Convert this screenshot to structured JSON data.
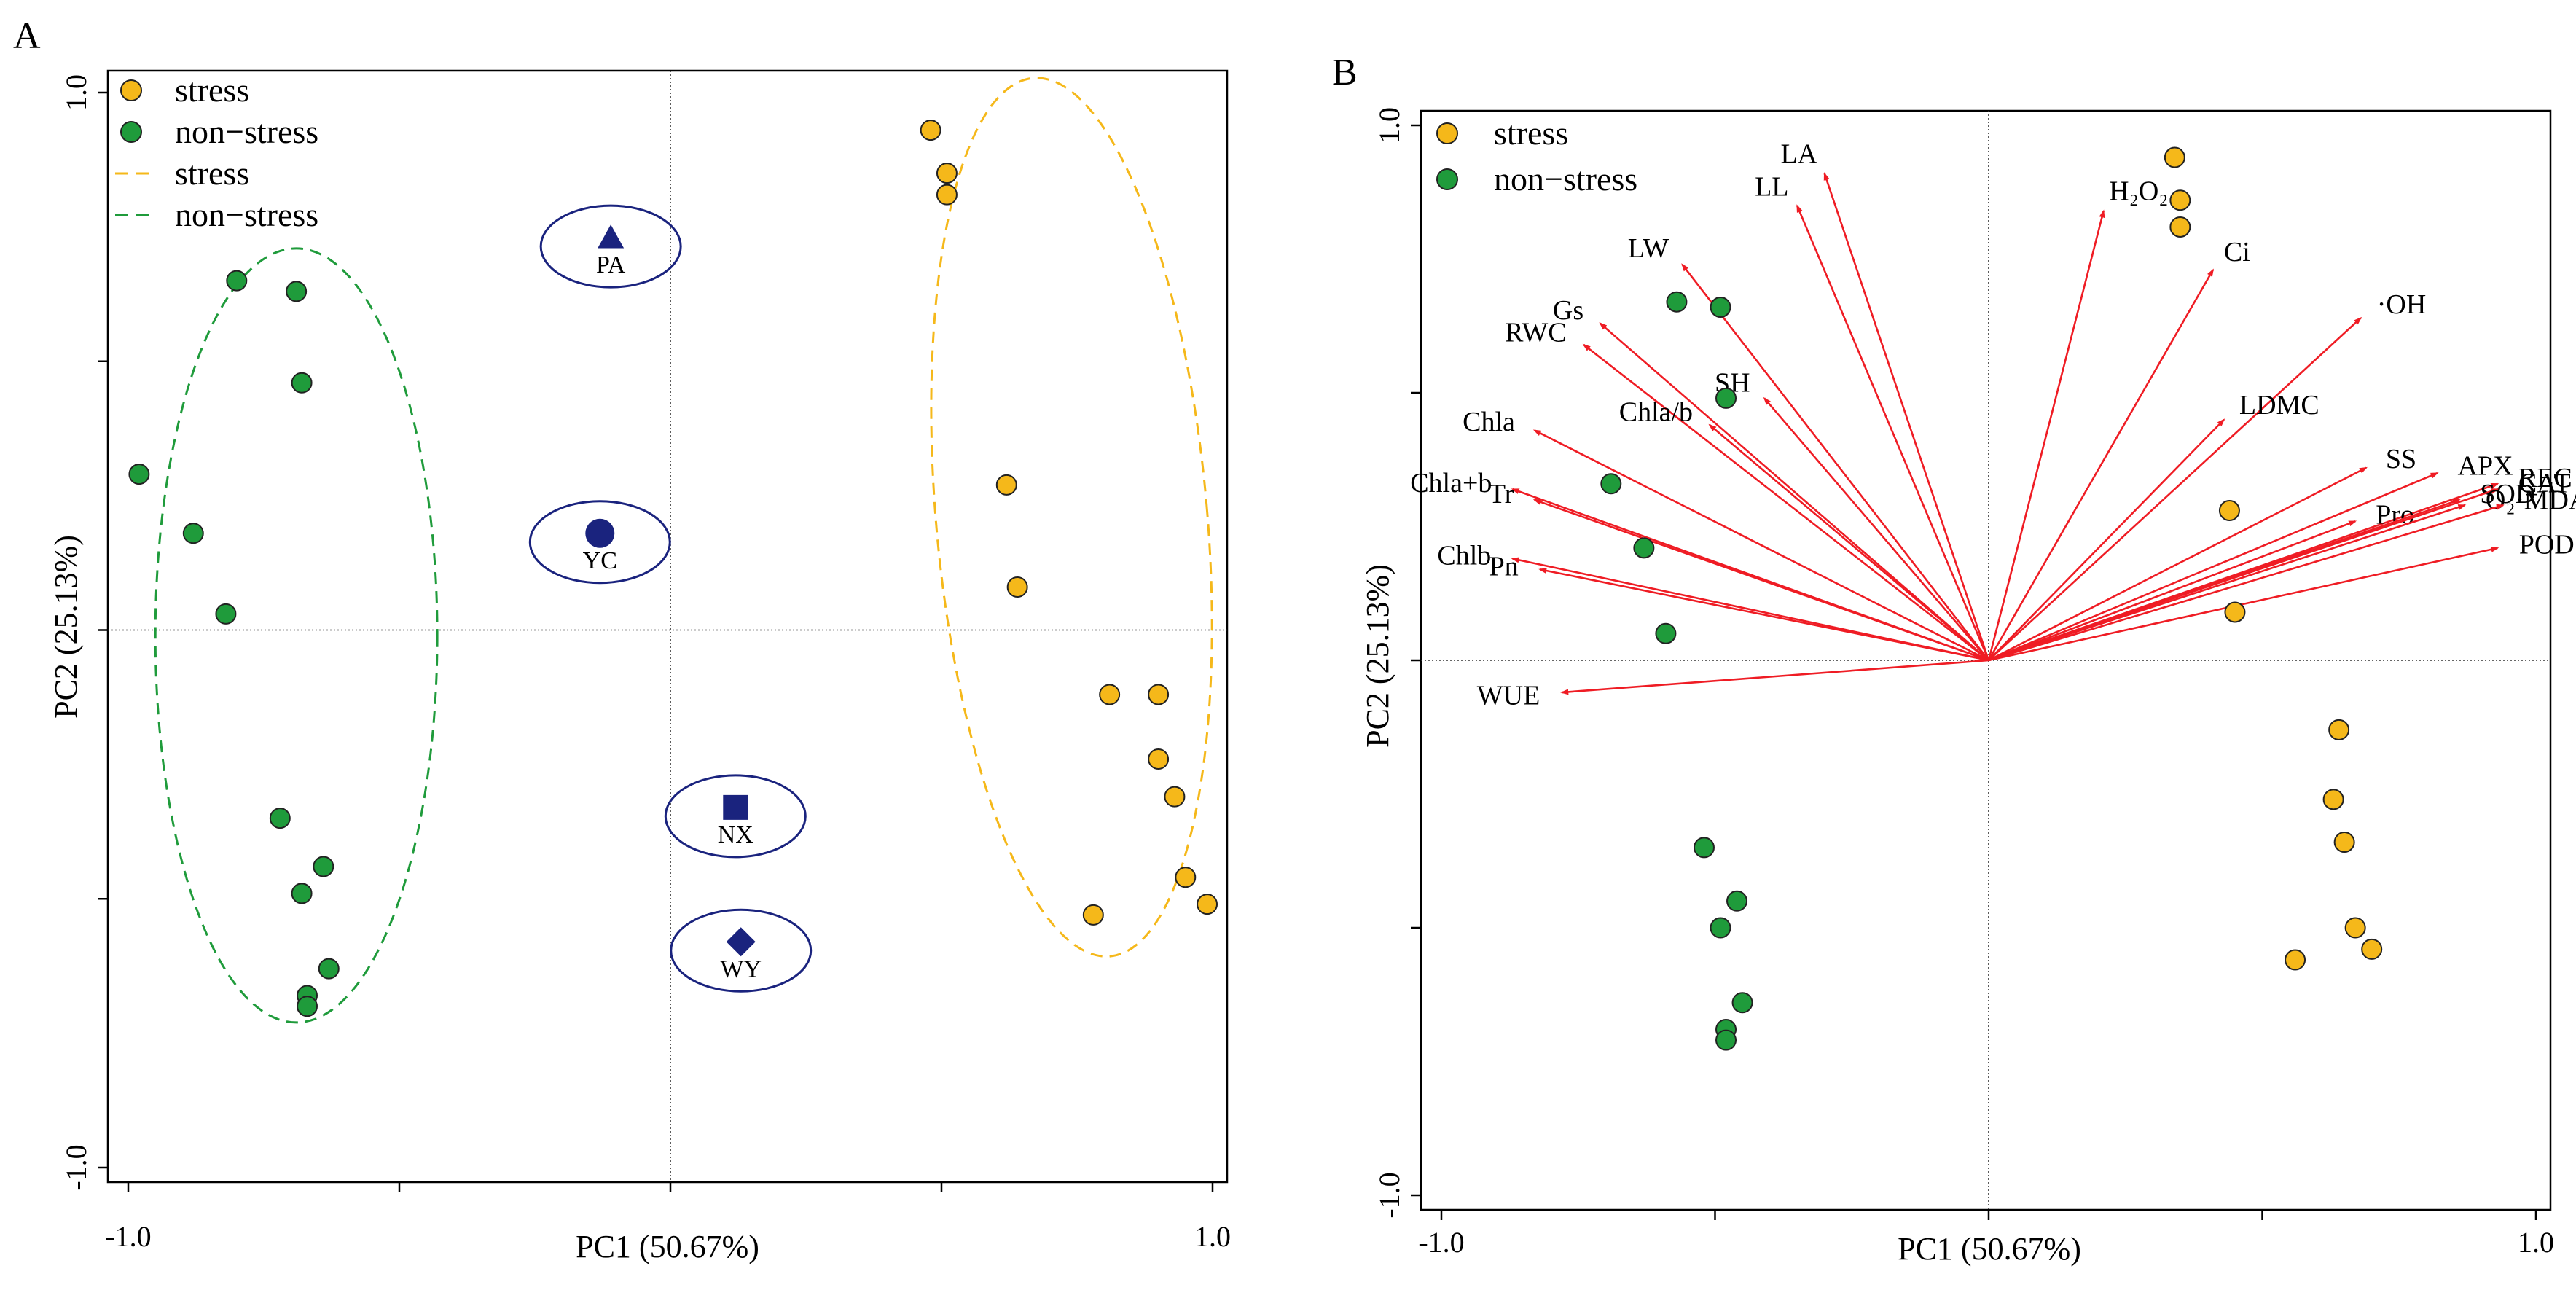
{
  "panel_labels": [
    "A",
    "B"
  ],
  "colors": {
    "stress": "#f5b81a",
    "non_stress": "#1f9b3b",
    "cultivar": "#1a237e",
    "arrow": "#ef1c24",
    "axis": "#000000"
  },
  "chart_data": [
    {
      "panel": "A",
      "type": "scatter",
      "title": "",
      "xlabel": "PC1 (50.67%)",
      "ylabel": "PC2 (25.13%)",
      "xlim": [
        -1.0,
        1.0
      ],
      "ylim": [
        -1.0,
        1.0
      ],
      "x_ticks": [
        -1.0,
        -0.5,
        0,
        0.5,
        1.0
      ],
      "y_ticks": [
        -1.0,
        -0.5,
        0,
        0.5,
        1.0
      ],
      "x_tick_labels": [
        "-1.0",
        "1.0"
      ],
      "y_tick_labels": [
        "1.0",
        "-1.0"
      ],
      "legend": [
        {
          "label": "stress",
          "kind": "marker",
          "series": "stress"
        },
        {
          "label": "non−stress",
          "kind": "marker",
          "series": "non_stress"
        },
        {
          "label": "stress",
          "kind": "dashed-line",
          "series": "stress"
        },
        {
          "label": "non−stress",
          "kind": "dashed-line",
          "series": "non_stress"
        }
      ],
      "series": [
        {
          "name": "stress",
          "points": [
            [
              0.48,
              0.93
            ],
            [
              0.51,
              0.85
            ],
            [
              0.51,
              0.81
            ],
            [
              0.62,
              0.27
            ],
            [
              0.64,
              0.08
            ],
            [
              0.81,
              -0.12
            ],
            [
              0.9,
              -0.12
            ],
            [
              0.9,
              -0.24
            ],
            [
              0.93,
              -0.31
            ],
            [
              0.95,
              -0.46
            ],
            [
              0.99,
              -0.51
            ],
            [
              0.78,
              -0.53
            ]
          ]
        },
        {
          "name": "non_stress",
          "points": [
            [
              -0.8,
              0.65
            ],
            [
              -0.69,
              0.63
            ],
            [
              -0.68,
              0.46
            ],
            [
              -0.98,
              0.29
            ],
            [
              -0.88,
              0.18
            ],
            [
              -0.82,
              0.03
            ],
            [
              -0.72,
              -0.35
            ],
            [
              -0.64,
              -0.44
            ],
            [
              -0.68,
              -0.49
            ],
            [
              -0.63,
              -0.63
            ],
            [
              -0.67,
              -0.68
            ],
            [
              -0.67,
              -0.7
            ]
          ]
        }
      ],
      "cultivars": [
        {
          "label": "PA",
          "marker": "triangle",
          "x": -0.11,
          "y": 0.73
        },
        {
          "label": "YC",
          "marker": "circle",
          "x": -0.13,
          "y": 0.18
        },
        {
          "label": "NX",
          "marker": "square",
          "x": 0.12,
          "y": -0.33
        },
        {
          "label": "WY",
          "marker": "diamond",
          "x": 0.13,
          "y": -0.58
        }
      ],
      "confidence_ellipses": [
        {
          "series": "non_stress",
          "cx": -0.69,
          "cy": -0.01,
          "rx": 0.26,
          "ry": 0.72
        },
        {
          "series": "stress",
          "cx": 0.74,
          "cy": 0.21,
          "rx": 0.25,
          "ry": 0.82
        }
      ]
    },
    {
      "panel": "B",
      "type": "scatter",
      "title": "",
      "xlabel": "PC1 (50.67%)",
      "ylabel": "PC2 (25.13%)",
      "xlim": [
        -1.0,
        1.0
      ],
      "ylim": [
        -1.0,
        1.0
      ],
      "x_ticks": [
        -1.0,
        -0.5,
        0,
        0.5,
        1.0
      ],
      "y_ticks": [
        -1.0,
        -0.5,
        0,
        0.5,
        1.0
      ],
      "x_tick_labels": [
        "-1.0",
        "1.0"
      ],
      "y_tick_labels": [
        "1.0",
        "-1.0"
      ],
      "legend": [
        {
          "label": "stress",
          "kind": "marker",
          "series": "stress"
        },
        {
          "label": "non−stress",
          "kind": "marker",
          "series": "non_stress"
        }
      ],
      "series": [
        {
          "name": "stress",
          "points": [
            [
              0.34,
              0.94
            ],
            [
              0.35,
              0.86
            ],
            [
              0.35,
              0.81
            ],
            [
              0.44,
              0.28
            ],
            [
              0.45,
              0.09
            ],
            [
              0.64,
              -0.13
            ],
            [
              0.63,
              -0.26
            ],
            [
              0.65,
              -0.34
            ],
            [
              0.67,
              -0.5
            ],
            [
              0.7,
              -0.54
            ],
            [
              0.56,
              -0.56
            ]
          ]
        },
        {
          "name": "non_stress",
          "points": [
            [
              -0.57,
              0.67
            ],
            [
              -0.49,
              0.66
            ],
            [
              -0.48,
              0.49
            ],
            [
              -0.69,
              0.33
            ],
            [
              -0.63,
              0.21
            ],
            [
              -0.59,
              0.05
            ],
            [
              -0.52,
              -0.35
            ],
            [
              -0.46,
              -0.45
            ],
            [
              -0.49,
              -0.5
            ],
            [
              -0.45,
              -0.64
            ],
            [
              -0.48,
              -0.69
            ],
            [
              -0.48,
              -0.71
            ]
          ]
        }
      ],
      "loadings": [
        {
          "label": "LA",
          "x": -0.3,
          "y": 0.91
        },
        {
          "label": "LL",
          "x": -0.35,
          "y": 0.85
        },
        {
          "label": "LW",
          "x": -0.56,
          "y": 0.74
        },
        {
          "label": "Gs",
          "x": -0.71,
          "y": 0.63
        },
        {
          "label": "RWC",
          "x": -0.74,
          "y": 0.59
        },
        {
          "label": "SH",
          "x": -0.41,
          "y": 0.49
        },
        {
          "label": "Chla/b",
          "x": -0.51,
          "y": 0.44
        },
        {
          "label": "Chla",
          "x": -0.83,
          "y": 0.43
        },
        {
          "label": "Chla+b",
          "x": -0.87,
          "y": 0.32
        },
        {
          "label": "Tr",
          "x": -0.83,
          "y": 0.3
        },
        {
          "label": "Chlb",
          "x": -0.87,
          "y": 0.19
        },
        {
          "label": "Pn",
          "x": -0.82,
          "y": 0.17
        },
        {
          "label": "WUE",
          "x": -0.78,
          "y": -0.06
        },
        {
          "label": "H₂O₂",
          "x": 0.21,
          "y": 0.84
        },
        {
          "label": "Ci",
          "x": 0.41,
          "y": 0.73
        },
        {
          "label": "·OH",
          "x": 0.68,
          "y": 0.64
        },
        {
          "label": "LDMC",
          "x": 0.43,
          "y": 0.45
        },
        {
          "label": "SS",
          "x": 0.69,
          "y": 0.36
        },
        {
          "label": "APX",
          "x": 0.82,
          "y": 0.35
        },
        {
          "label": "REC",
          "x": 0.93,
          "y": 0.33
        },
        {
          "label": "Pro",
          "x": 0.67,
          "y": 0.26
        },
        {
          "label": "SOD",
          "x": 0.86,
          "y": 0.3
        },
        {
          "label": "CAT",
          "x": 0.93,
          "y": 0.32
        },
        {
          "label": "O₂·⁻",
          "x": 0.87,
          "y": 0.29
        },
        {
          "label": "MDA",
          "x": 0.94,
          "y": 0.29
        },
        {
          "label": "POD",
          "x": 0.93,
          "y": 0.21
        }
      ]
    }
  ]
}
